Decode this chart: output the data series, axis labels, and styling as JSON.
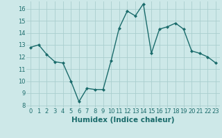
{
  "x": [
    0,
    1,
    2,
    3,
    4,
    5,
    6,
    7,
    8,
    9,
    10,
    11,
    12,
    13,
    14,
    15,
    16,
    17,
    18,
    19,
    20,
    21,
    22,
    23
  ],
  "y": [
    12.8,
    13.0,
    12.2,
    11.6,
    11.5,
    10.0,
    8.3,
    9.4,
    9.3,
    9.3,
    11.7,
    14.4,
    15.8,
    15.4,
    16.4,
    12.3,
    14.3,
    14.5,
    14.8,
    14.3,
    12.5,
    12.3,
    12.0,
    11.5
  ],
  "line_color": "#1a6b6b",
  "marker": "D",
  "markersize": 2.0,
  "linewidth": 1.0,
  "xlabel": "Humidex (Indice chaleur)",
  "xlabel_fontsize": 7.5,
  "ylim": [
    7.8,
    16.6
  ],
  "xlim": [
    -0.5,
    23.5
  ],
  "yticks": [
    8,
    9,
    10,
    11,
    12,
    13,
    14,
    15,
    16
  ],
  "xticks": [
    0,
    1,
    2,
    3,
    4,
    5,
    6,
    7,
    8,
    9,
    10,
    11,
    12,
    13,
    14,
    15,
    16,
    17,
    18,
    19,
    20,
    21,
    22,
    23
  ],
  "bg_color": "#cde8e8",
  "grid_color": "#aacece",
  "tick_fontsize": 6.0,
  "tick_color": "#1a6b6b"
}
